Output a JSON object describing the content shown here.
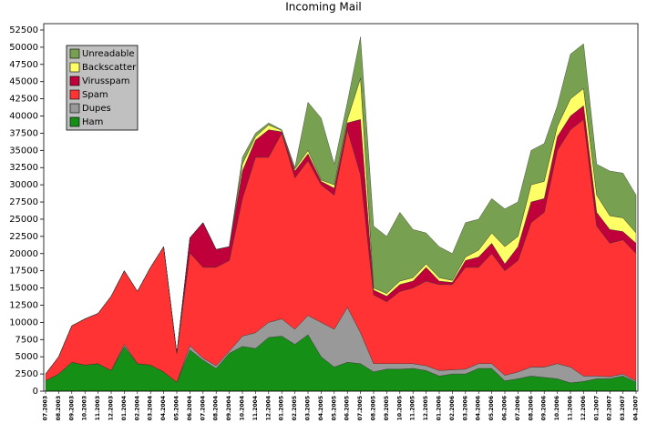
{
  "chart_data": {
    "type": "stacked_area",
    "title": "Incoming Mail",
    "categories": [
      "07.2003",
      "08.2003",
      "09.2003",
      "10.2003",
      "11.2003",
      "12.2003",
      "01.2004",
      "02.2004",
      "03.2004",
      "04.2004",
      "05.2004",
      "06.2004",
      "07.2004",
      "08.2004",
      "09.2004",
      "10.2004",
      "11.2004",
      "12.2004",
      "01.2005",
      "02.2005",
      "03.2005",
      "04.2005",
      "05.2005",
      "06.2005",
      "07.2005",
      "08.2005",
      "09.2005",
      "10.2005",
      "11.2005",
      "12.2005",
      "01.2006",
      "02.2006",
      "03.2006",
      "04.2006",
      "05.2006",
      "06.2006",
      "07.2006",
      "08.2006",
      "09.2006",
      "10.2006",
      "11.2006",
      "12.2006",
      "01.2007",
      "02.2007",
      "03.2007",
      "04.2007"
    ],
    "series": [
      {
        "name": "Ham",
        "color": "#158f15",
        "values": [
          1500,
          2500,
          4200,
          3800,
          4000,
          3000,
          6500,
          4000,
          3800,
          2800,
          1300,
          6000,
          4500,
          3300,
          5500,
          6500,
          6200,
          7800,
          8000,
          6800,
          8200,
          5000,
          3500,
          4200,
          4000,
          2800,
          3200,
          3200,
          3300,
          3000,
          2200,
          2500,
          2500,
          3300,
          3300,
          1500,
          1800,
          2200,
          2000,
          1800,
          1200,
          1400,
          1800,
          1800,
          2200,
          1300
        ]
      },
      {
        "name": "Dupes",
        "color": "#999999",
        "values": [
          0,
          0,
          0,
          0,
          0,
          0,
          300,
          0,
          0,
          0,
          0,
          600,
          300,
          400,
          300,
          1500,
          2300,
          2200,
          2500,
          2200,
          2800,
          5000,
          5500,
          8000,
          4500,
          1200,
          800,
          800,
          700,
          700,
          800,
          600,
          700,
          700,
          700,
          800,
          1000,
          1300,
          1500,
          2200,
          2300,
          800,
          400,
          300,
          300,
          200
        ]
      },
      {
        "name": "Spam",
        "color": "#ff3333",
        "values": [
          1000,
          2500,
          5300,
          6700,
          7300,
          10800,
          10700,
          10500,
          14200,
          18200,
          4200,
          13500,
          13200,
          14300,
          13200,
          20000,
          25500,
          24000,
          27000,
          22000,
          22500,
          20000,
          19500,
          25800,
          23000,
          10000,
          9000,
          10500,
          11000,
          12300,
          12500,
          12400,
          14800,
          14000,
          16000,
          15200,
          16200,
          21000,
          22500,
          31000,
          34500,
          37300,
          21800,
          19400,
          19500,
          18500
        ]
      },
      {
        "name": "Virusspam",
        "color": "#c0003a",
        "values": [
          0,
          0,
          0,
          0,
          0,
          0,
          0,
          0,
          0,
          0,
          0,
          2200,
          6500,
          2600,
          2000,
          4000,
          2500,
          4000,
          200,
          1000,
          1000,
          500,
          1000,
          1000,
          8000,
          700,
          800,
          1000,
          1000,
          2000,
          500,
          300,
          1000,
          1500,
          1500,
          1000,
          2000,
          3000,
          2000,
          2000,
          2000,
          2000,
          2000,
          2000,
          1200,
          1500
        ]
      },
      {
        "name": "Backscatter",
        "color": "#ffff66",
        "values": [
          0,
          0,
          0,
          0,
          0,
          0,
          0,
          0,
          0,
          0,
          0,
          0,
          0,
          0,
          0,
          1000,
          500,
          700,
          200,
          300,
          500,
          200,
          500,
          500,
          6000,
          300,
          400,
          500,
          500,
          500,
          500,
          300,
          500,
          1000,
          1500,
          2500,
          1500,
          2500,
          2500,
          1500,
          2500,
          2500,
          2500,
          2000,
          2000,
          1500
        ]
      },
      {
        "name": "Unreadable",
        "color": "#77a150",
        "values": [
          0,
          0,
          0,
          0,
          0,
          0,
          0,
          0,
          0,
          0,
          0,
          0,
          0,
          0,
          0,
          1000,
          500,
          300,
          100,
          200,
          7000,
          9000,
          3000,
          2500,
          6000,
          9000,
          8300,
          10000,
          7000,
          4500,
          4500,
          3900,
          5000,
          4500,
          5000,
          5500,
          5000,
          5000,
          5500,
          3000,
          6500,
          6500,
          4500,
          6500,
          6500,
          5500
        ]
      }
    ],
    "ylim": [
      0,
      52500
    ],
    "yticks": [
      0,
      2500,
      5000,
      7500,
      10000,
      12500,
      15000,
      17500,
      20000,
      22500,
      25000,
      27500,
      30000,
      32500,
      35000,
      37500,
      40000,
      42500,
      45000,
      47500,
      50000,
      52500
    ],
    "grid": false,
    "legend": "upper-left"
  }
}
